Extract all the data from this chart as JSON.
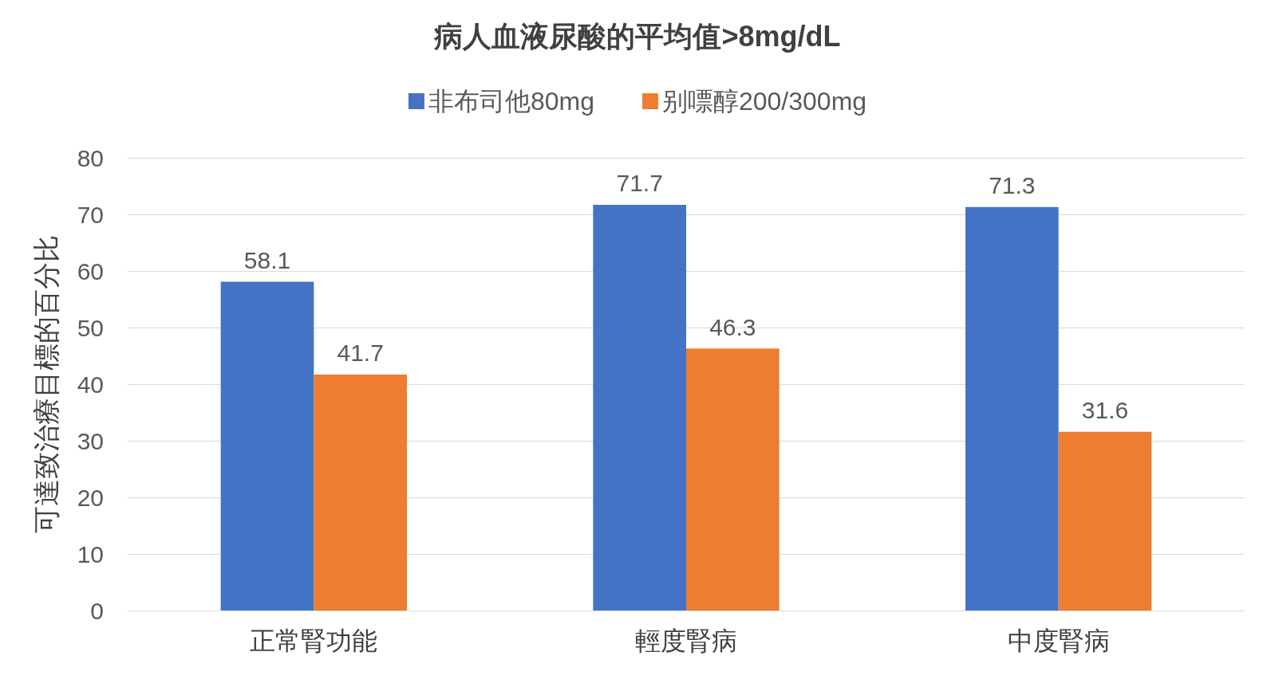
{
  "chart_data": {
    "type": "bar",
    "title": "病人血液尿酸的平均值>8mg/dL",
    "ylabel": "可達致治療目標的百分比",
    "categories": [
      "正常腎功能",
      "輕度腎病",
      "中度腎病"
    ],
    "series": [
      {
        "name": "非布司他80mg",
        "color": "#4472c4",
        "values": [
          58.1,
          71.7,
          71.3
        ]
      },
      {
        "name": "别嘌醇200/300mg",
        "color": "#ed7d31",
        "values": [
          41.7,
          46.3,
          31.6
        ]
      }
    ],
    "ylim": [
      0,
      80
    ],
    "yticks": [
      0,
      10,
      20,
      30,
      40,
      50,
      60,
      70,
      80
    ],
    "grid": "y",
    "legend": "top",
    "data_labels": true
  }
}
